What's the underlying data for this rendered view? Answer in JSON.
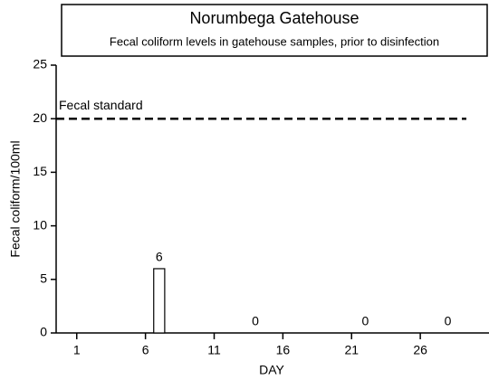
{
  "chart_data": {
    "type": "bar",
    "title": "Norumbega Gatehouse",
    "subtitle": "Fecal coliform levels in gatehouse samples, prior to disinfection",
    "x_label": "DAY",
    "y_label": "Fecal coliform/100ml",
    "x": [
      7,
      14,
      22,
      28
    ],
    "values": [
      6,
      0,
      0,
      0
    ],
    "color": "#ffffff",
    "xlim": [
      -0.5,
      31
    ],
    "xticks": [
      1,
      6,
      11,
      16,
      21,
      26
    ],
    "ylim": [
      0,
      25
    ],
    "yticks": [
      0,
      5,
      10,
      15,
      20,
      25
    ],
    "reference_lines": [
      {
        "value": 20,
        "label": "Fecal standard"
      }
    ],
    "grid": false
  }
}
